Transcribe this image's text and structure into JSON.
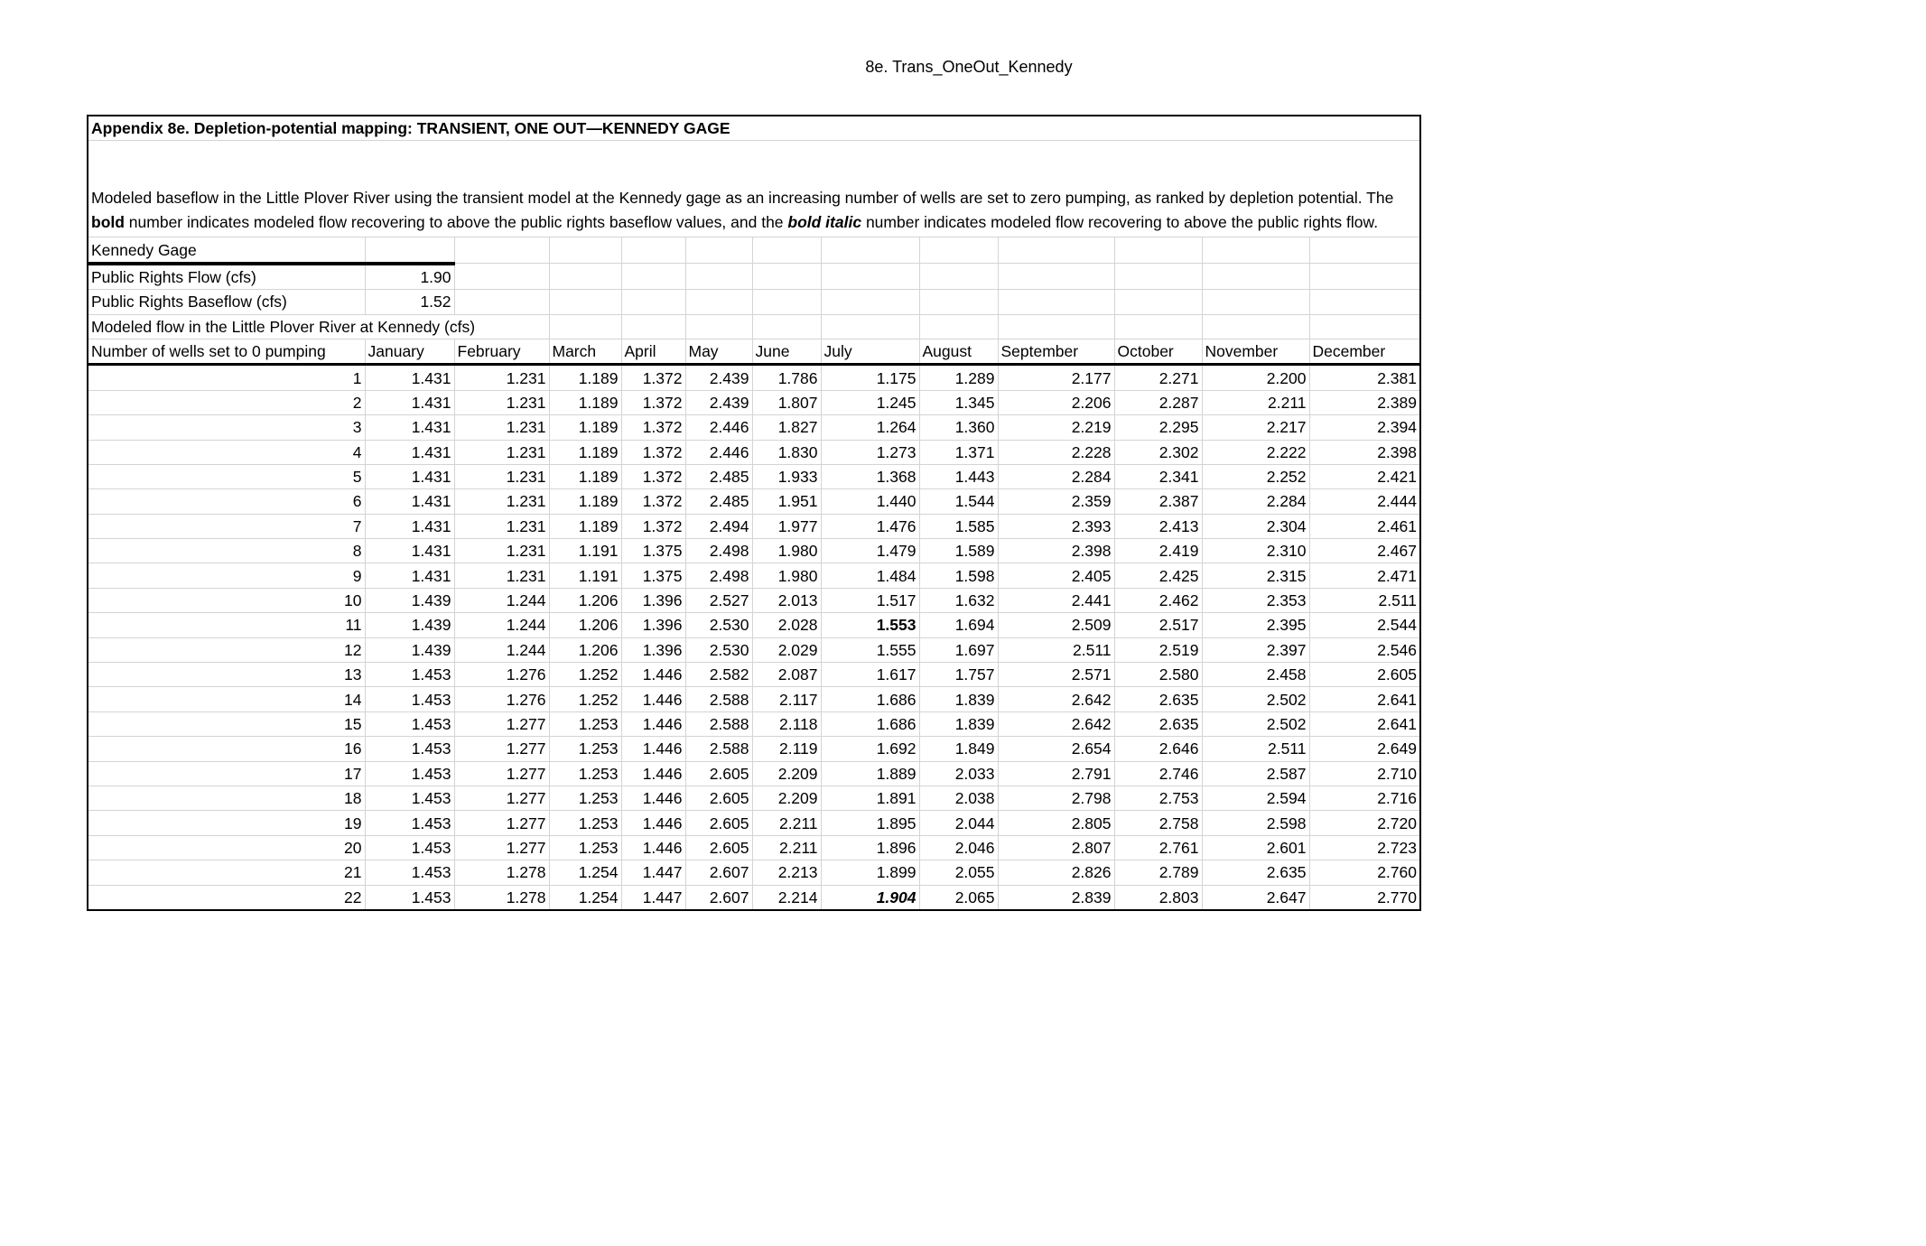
{
  "sheet_title": "8e. Trans_OneOut_Kennedy",
  "table_title": "Appendix 8e. Depletion-potential mapping: TRANSIENT, ONE OUT—KENNEDY GAGE",
  "description": {
    "part1": "Modeled baseflow in the Little Plover River using the transient model at the Kennedy gage as an increasing number of wells are set to zero pumping, as ranked by depletion potential. The ",
    "bold_word": "bold",
    "part2": " number indicates modeled flow recovering to above the public rights baseflow values, and the ",
    "bold_italic_word": "bold italic",
    "part3": " number indicates modeled flow recovering to above the public rights flow."
  },
  "gage_label": "Kennedy Gage",
  "public_rights_flow": {
    "label": "Public Rights Flow (cfs)",
    "value": "1.90"
  },
  "public_rights_baseflow": {
    "label": "Public Rights Baseflow (cfs)",
    "value": "1.52"
  },
  "modeled_flow_label": "Modeled flow in the Little Plover River at Kennedy (cfs)",
  "columns": [
    "Number of wells set to 0 pumping",
    "January",
    "February",
    "March",
    "April",
    "May",
    "June",
    "July",
    "August",
    "September",
    "October",
    "November",
    "December"
  ],
  "rows": [
    [
      "1",
      "1.431",
      "1.231",
      "1.189",
      "1.372",
      "2.439",
      "1.786",
      "1.175",
      "1.289",
      "2.177",
      "2.271",
      "2.200",
      "2.381"
    ],
    [
      "2",
      "1.431",
      "1.231",
      "1.189",
      "1.372",
      "2.439",
      "1.807",
      "1.245",
      "1.345",
      "2.206",
      "2.287",
      "2.211",
      "2.389"
    ],
    [
      "3",
      "1.431",
      "1.231",
      "1.189",
      "1.372",
      "2.446",
      "1.827",
      "1.264",
      "1.360",
      "2.219",
      "2.295",
      "2.217",
      "2.394"
    ],
    [
      "4",
      "1.431",
      "1.231",
      "1.189",
      "1.372",
      "2.446",
      "1.830",
      "1.273",
      "1.371",
      "2.228",
      "2.302",
      "2.222",
      "2.398"
    ],
    [
      "5",
      "1.431",
      "1.231",
      "1.189",
      "1.372",
      "2.485",
      "1.933",
      "1.368",
      "1.443",
      "2.284",
      "2.341",
      "2.252",
      "2.421"
    ],
    [
      "6",
      "1.431",
      "1.231",
      "1.189",
      "1.372",
      "2.485",
      "1.951",
      "1.440",
      "1.544",
      "2.359",
      "2.387",
      "2.284",
      "2.444"
    ],
    [
      "7",
      "1.431",
      "1.231",
      "1.189",
      "1.372",
      "2.494",
      "1.977",
      "1.476",
      "1.585",
      "2.393",
      "2.413",
      "2.304",
      "2.461"
    ],
    [
      "8",
      "1.431",
      "1.231",
      "1.191",
      "1.375",
      "2.498",
      "1.980",
      "1.479",
      "1.589",
      "2.398",
      "2.419",
      "2.310",
      "2.467"
    ],
    [
      "9",
      "1.431",
      "1.231",
      "1.191",
      "1.375",
      "2.498",
      "1.980",
      "1.484",
      "1.598",
      "2.405",
      "2.425",
      "2.315",
      "2.471"
    ],
    [
      "10",
      "1.439",
      "1.244",
      "1.206",
      "1.396",
      "2.527",
      "2.013",
      "1.517",
      "1.632",
      "2.441",
      "2.462",
      "2.353",
      "2.511"
    ],
    [
      "11",
      "1.439",
      "1.244",
      "1.206",
      "1.396",
      "2.530",
      "2.028",
      "1.553",
      "1.694",
      "2.509",
      "2.517",
      "2.395",
      "2.544"
    ],
    [
      "12",
      "1.439",
      "1.244",
      "1.206",
      "1.396",
      "2.530",
      "2.029",
      "1.555",
      "1.697",
      "2.511",
      "2.519",
      "2.397",
      "2.546"
    ],
    [
      "13",
      "1.453",
      "1.276",
      "1.252",
      "1.446",
      "2.582",
      "2.087",
      "1.617",
      "1.757",
      "2.571",
      "2.580",
      "2.458",
      "2.605"
    ],
    [
      "14",
      "1.453",
      "1.276",
      "1.252",
      "1.446",
      "2.588",
      "2.117",
      "1.686",
      "1.839",
      "2.642",
      "2.635",
      "2.502",
      "2.641"
    ],
    [
      "15",
      "1.453",
      "1.277",
      "1.253",
      "1.446",
      "2.588",
      "2.118",
      "1.686",
      "1.839",
      "2.642",
      "2.635",
      "2.502",
      "2.641"
    ],
    [
      "16",
      "1.453",
      "1.277",
      "1.253",
      "1.446",
      "2.588",
      "2.119",
      "1.692",
      "1.849",
      "2.654",
      "2.646",
      "2.511",
      "2.649"
    ],
    [
      "17",
      "1.453",
      "1.277",
      "1.253",
      "1.446",
      "2.605",
      "2.209",
      "1.889",
      "2.033",
      "2.791",
      "2.746",
      "2.587",
      "2.710"
    ],
    [
      "18",
      "1.453",
      "1.277",
      "1.253",
      "1.446",
      "2.605",
      "2.209",
      "1.891",
      "2.038",
      "2.798",
      "2.753",
      "2.594",
      "2.716"
    ],
    [
      "19",
      "1.453",
      "1.277",
      "1.253",
      "1.446",
      "2.605",
      "2.211",
      "1.895",
      "2.044",
      "2.805",
      "2.758",
      "2.598",
      "2.720"
    ],
    [
      "20",
      "1.453",
      "1.277",
      "1.253",
      "1.446",
      "2.605",
      "2.211",
      "1.896",
      "2.046",
      "2.807",
      "2.761",
      "2.601",
      "2.723"
    ],
    [
      "21",
      "1.453",
      "1.278",
      "1.254",
      "1.447",
      "2.607",
      "2.213",
      "1.899",
      "2.055",
      "2.826",
      "2.789",
      "2.635",
      "2.760"
    ],
    [
      "22",
      "1.453",
      "1.278",
      "1.254",
      "1.447",
      "2.607",
      "2.214",
      "1.904",
      "2.065",
      "2.839",
      "2.803",
      "2.647",
      "2.770"
    ]
  ],
  "emphasis": [
    {
      "row": 11,
      "column": "July",
      "style": "bold"
    },
    {
      "row": 22,
      "column": "July",
      "style": "bold italic"
    }
  ]
}
